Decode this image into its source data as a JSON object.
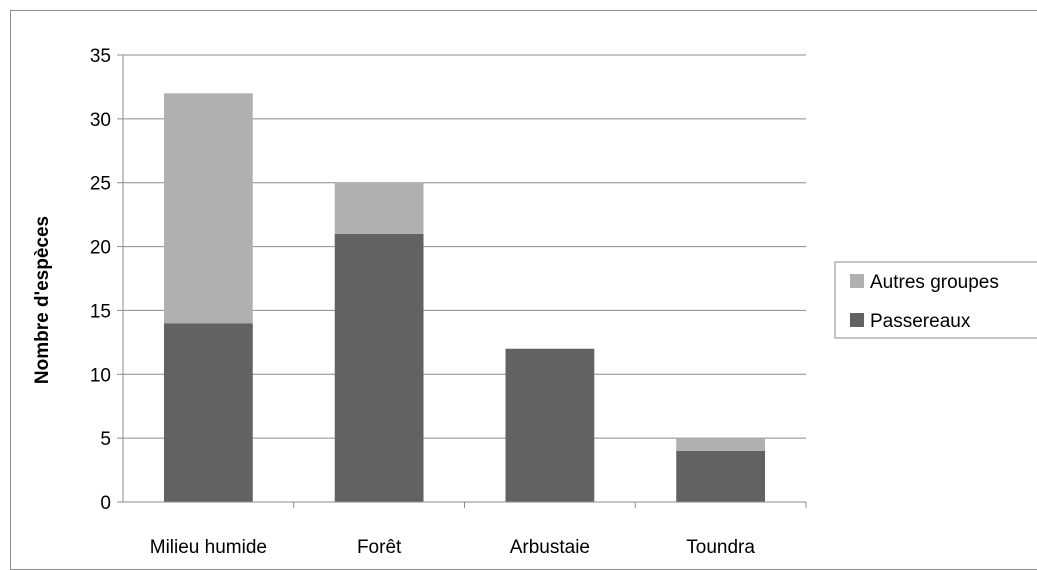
{
  "chart_data": {
    "type": "bar",
    "stacked": true,
    "title": "",
    "xlabel": "",
    "ylabel": "Nombre d'espèces",
    "categories": [
      "Milieu humide",
      "Forêt",
      "Arbustaie",
      "Toundra"
    ],
    "series": [
      {
        "name": "Passereaux",
        "values": [
          14,
          21,
          12,
          4
        ],
        "color": "#626262"
      },
      {
        "name": "Autres groupes",
        "values": [
          18,
          4,
          0,
          1
        ],
        "color": "#b0b0b0"
      }
    ],
    "ylim": [
      0,
      35
    ],
    "yticks": [
      0,
      5,
      10,
      15,
      20,
      25,
      30,
      35
    ],
    "grid": true,
    "legend_position": "right",
    "legend_order": [
      "Autres groupes",
      "Passereaux"
    ]
  }
}
